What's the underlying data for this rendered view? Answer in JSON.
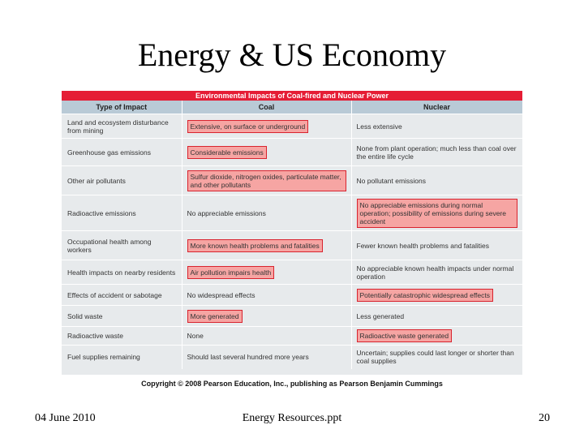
{
  "slide": {
    "title": "Energy & US Economy"
  },
  "table": {
    "title": "Environmental Impacts of Coal-fired and Nuclear Power",
    "headers": [
      "Type of Impact",
      "Coal",
      "Nuclear"
    ],
    "rows": [
      {
        "impact": "Land and ecosystem disturbance from mining",
        "coal": "Extensive, on surface or underground",
        "nuclear": "Less extensive",
        "coal_hl": true,
        "nuclear_hl": false
      },
      {
        "impact": "Greenhouse gas emissions",
        "coal": "Considerable emissions",
        "nuclear": "None from plant operation; much less than coal over the entire life cycle",
        "coal_hl": true,
        "nuclear_hl": false
      },
      {
        "impact": "Other air pollutants",
        "coal": "Sulfur dioxide, nitrogen oxides, particulate matter, and other pollutants",
        "nuclear": "No pollutant emissions",
        "coal_hl": true,
        "nuclear_hl": false
      },
      {
        "impact": "Radioactive emissions",
        "coal": "No appreciable emissions",
        "nuclear": "No appreciable emissions during normal operation; possibility of emissions during severe accident",
        "coal_hl": false,
        "nuclear_hl": true
      },
      {
        "impact": "Occupational health among workers",
        "coal": "More known health problems and fatalities",
        "nuclear": "Fewer known health problems and fatalities",
        "coal_hl": true,
        "nuclear_hl": false
      },
      {
        "impact": "Health impacts on nearby residents",
        "coal": "Air pollution impairs health",
        "nuclear": "No appreciable known health impacts under normal operation",
        "coal_hl": true,
        "nuclear_hl": false
      },
      {
        "impact": "Effects of accident or sabotage",
        "coal": "No widespread effects",
        "nuclear": "Potentially catastrophic widespread effects",
        "coal_hl": false,
        "nuclear_hl": true
      },
      {
        "impact": "Solid waste",
        "coal": "More generated",
        "nuclear": "Less generated",
        "coal_hl": true,
        "nuclear_hl": false
      },
      {
        "impact": "Radioactive waste",
        "coal": "None",
        "nuclear": "Radioactive waste generated",
        "coal_hl": false,
        "nuclear_hl": true
      },
      {
        "impact": "Fuel supplies remaining",
        "coal": "Should last several hundred more years",
        "nuclear": "Uncertain; supplies could last longer or shorter than coal supplies",
        "coal_hl": false,
        "nuclear_hl": false
      }
    ],
    "copyright": "Copyright © 2008 Pearson Education, Inc., publishing as Pearson Benjamin Cummings"
  },
  "footer": {
    "date": "04 June 2010",
    "filename": "Energy Resources.ppt",
    "page_number": "20"
  },
  "colors": {
    "title_bar": "#e51d35",
    "header_bg": "#b9cad6",
    "table_bg": "#e7eaec",
    "highlight_fill": "#f6a5a3",
    "highlight_border": "#d9232e"
  }
}
